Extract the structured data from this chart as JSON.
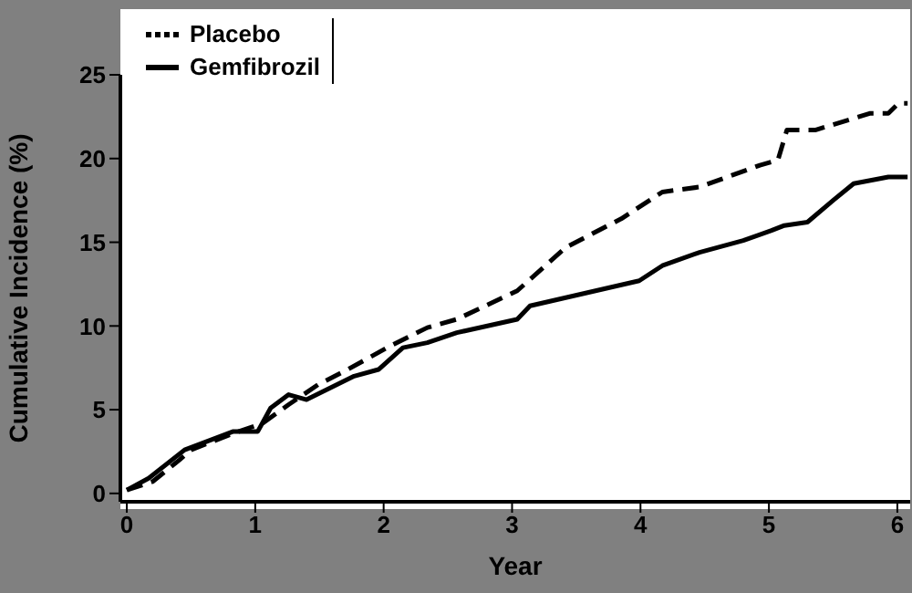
{
  "chart_data": {
    "type": "line",
    "xlabel": "Year",
    "ylabel": "Cumulative Incidence (%)",
    "xlim": [
      -0.05,
      6.1
    ],
    "ylim": [
      -0.5,
      25
    ],
    "xticks": [
      0,
      1,
      2,
      3,
      4,
      5,
      6
    ],
    "yticks": [
      0,
      5,
      10,
      15,
      20,
      25
    ],
    "grid": false,
    "legend": "top left",
    "marker": "none",
    "series": [
      {
        "name": "Placebo",
        "color": "#000000",
        "line_style": "dashed",
        "x": [
          0,
          0.2,
          0.41,
          0.5,
          0.8,
          1.06,
          1.26,
          1.49,
          1.72,
          2.05,
          2.34,
          2.57,
          3.04,
          3.42,
          3.85,
          4.17,
          4.46,
          4.93,
          5.07,
          5.14,
          5.36,
          5.79,
          5.93,
          6.01,
          6.08
        ],
        "values": [
          0.2,
          0.7,
          2.0,
          2.6,
          3.5,
          4.2,
          5.3,
          6.5,
          7.4,
          8.8,
          9.9,
          10.4,
          12.1,
          14.7,
          16.4,
          18.0,
          18.3,
          19.6,
          19.9,
          21.7,
          21.7,
          22.7,
          22.7,
          23.3,
          23.3
        ]
      },
      {
        "name": "Gemfibrozil",
        "color": "#000000",
        "line_style": "solid",
        "x": [
          0,
          0.17,
          0.45,
          0.83,
          1.02,
          1.12,
          1.26,
          1.4,
          1.77,
          1.96,
          2.15,
          2.34,
          2.57,
          3.04,
          3.14,
          3.99,
          4.17,
          4.46,
          4.8,
          5.02,
          5.12,
          5.3,
          5.5,
          5.66,
          5.93,
          6.08
        ],
        "values": [
          0.2,
          0.9,
          2.6,
          3.7,
          3.7,
          5.1,
          5.9,
          5.6,
          7.0,
          7.4,
          8.7,
          9.0,
          9.6,
          10.4,
          11.2,
          12.7,
          13.6,
          14.4,
          15.1,
          15.7,
          16.0,
          16.2,
          17.5,
          18.5,
          18.9,
          18.9
        ]
      }
    ]
  }
}
